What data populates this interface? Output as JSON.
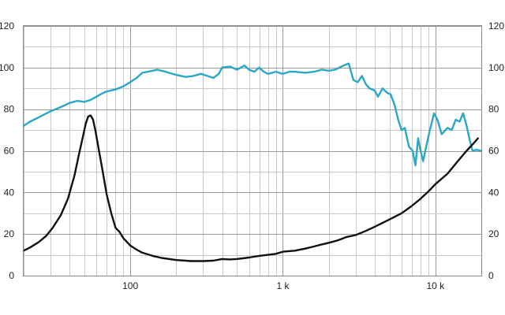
{
  "chart_data": {
    "type": "line",
    "title": "",
    "xlabel": "",
    "ylabel": "",
    "x_scale": "log",
    "xlim": [
      20,
      20000
    ],
    "ylim": [
      0,
      120
    ],
    "grid": true,
    "y_ticks": [
      "0",
      "20",
      "40",
      "60",
      "80",
      "100",
      "120"
    ],
    "x_tick_labels": [
      {
        "value": 100,
        "label": "100"
      },
      {
        "value": 1000,
        "label": "1 k"
      },
      {
        "value": 10000,
        "label": "10 k"
      }
    ],
    "series": [
      {
        "color": "#2aa6c6",
        "points": [
          [
            20,
            72
          ],
          [
            22,
            74
          ],
          [
            25,
            76
          ],
          [
            30,
            79
          ],
          [
            35,
            81
          ],
          [
            40,
            83
          ],
          [
            45,
            84
          ],
          [
            50,
            83.5
          ],
          [
            55,
            84.5
          ],
          [
            60,
            86
          ],
          [
            65,
            87.5
          ],
          [
            70,
            88.5
          ],
          [
            80,
            89.5
          ],
          [
            90,
            91
          ],
          [
            100,
            93
          ],
          [
            110,
            95
          ],
          [
            120,
            97.5
          ],
          [
            130,
            98
          ],
          [
            140,
            98.5
          ],
          [
            150,
            99
          ],
          [
            170,
            98
          ],
          [
            200,
            96.5
          ],
          [
            230,
            95.5
          ],
          [
            260,
            96
          ],
          [
            290,
            97
          ],
          [
            320,
            96
          ],
          [
            350,
            95
          ],
          [
            380,
            97
          ],
          [
            400,
            100
          ],
          [
            450,
            100.5
          ],
          [
            500,
            99
          ],
          [
            560,
            101
          ],
          [
            600,
            99
          ],
          [
            650,
            98
          ],
          [
            700,
            100
          ],
          [
            750,
            98
          ],
          [
            800,
            97
          ],
          [
            900,
            98
          ],
          [
            1000,
            97
          ],
          [
            1100,
            98
          ],
          [
            1200,
            98
          ],
          [
            1400,
            97.5
          ],
          [
            1600,
            98
          ],
          [
            1800,
            99
          ],
          [
            2000,
            98.5
          ],
          [
            2200,
            99
          ],
          [
            2500,
            101
          ],
          [
            2700,
            102
          ],
          [
            2900,
            94
          ],
          [
            3100,
            93
          ],
          [
            3300,
            96
          ],
          [
            3500,
            92
          ],
          [
            3700,
            90
          ],
          [
            4000,
            89
          ],
          [
            4200,
            86
          ],
          [
            4500,
            90
          ],
          [
            4800,
            88
          ],
          [
            5100,
            87
          ],
          [
            5400,
            82
          ],
          [
            5700,
            75
          ],
          [
            6000,
            70
          ],
          [
            6300,
            71
          ],
          [
            6700,
            62
          ],
          [
            7100,
            60
          ],
          [
            7400,
            53
          ],
          [
            7700,
            66
          ],
          [
            8000,
            60
          ],
          [
            8300,
            55
          ],
          [
            8700,
            62
          ],
          [
            9200,
            70
          ],
          [
            9800,
            78
          ],
          [
            10300,
            75
          ],
          [
            11000,
            68
          ],
          [
            12000,
            71
          ],
          [
            12800,
            70
          ],
          [
            13600,
            75
          ],
          [
            14400,
            74
          ],
          [
            15200,
            78
          ],
          [
            16000,
            72
          ],
          [
            16800,
            65
          ],
          [
            17500,
            60
          ],
          [
            18500,
            60.5
          ],
          [
            20000,
            60
          ]
        ]
      },
      {
        "color": "#111111",
        "points": [
          [
            20,
            12
          ],
          [
            22,
            13.5
          ],
          [
            25,
            16
          ],
          [
            28,
            19
          ],
          [
            31,
            23
          ],
          [
            35,
            29
          ],
          [
            39,
            37
          ],
          [
            43,
            48
          ],
          [
            46,
            58
          ],
          [
            49,
            67
          ],
          [
            51,
            73
          ],
          [
            53,
            76.5
          ],
          [
            55,
            77
          ],
          [
            57,
            75
          ],
          [
            59,
            70
          ],
          [
            62,
            61
          ],
          [
            66,
            50
          ],
          [
            70,
            39
          ],
          [
            75,
            30
          ],
          [
            80,
            23
          ],
          [
            85,
            21
          ],
          [
            90,
            18
          ],
          [
            100,
            14.5
          ],
          [
            110,
            12.5
          ],
          [
            120,
            11
          ],
          [
            140,
            9.5
          ],
          [
            160,
            8.5
          ],
          [
            200,
            7.5
          ],
          [
            250,
            7
          ],
          [
            300,
            7
          ],
          [
            350,
            7.2
          ],
          [
            400,
            8
          ],
          [
            450,
            7.8
          ],
          [
            500,
            8
          ],
          [
            600,
            8.7
          ],
          [
            700,
            9.5
          ],
          [
            800,
            10
          ],
          [
            900,
            10.5
          ],
          [
            1000,
            11.5
          ],
          [
            1200,
            12
          ],
          [
            1400,
            13
          ],
          [
            1600,
            14
          ],
          [
            1800,
            15
          ],
          [
            2000,
            15.8
          ],
          [
            2300,
            17
          ],
          [
            2600,
            18.5
          ],
          [
            3000,
            19.5
          ],
          [
            3500,
            21.5
          ],
          [
            4000,
            23.5
          ],
          [
            5000,
            27
          ],
          [
            6000,
            30
          ],
          [
            7000,
            33.5
          ],
          [
            8000,
            37
          ],
          [
            9000,
            40.5
          ],
          [
            10000,
            44
          ],
          [
            12000,
            49
          ],
          [
            14000,
            55
          ],
          [
            16000,
            60
          ],
          [
            18000,
            64
          ],
          [
            19000,
            66
          ]
        ]
      }
    ]
  }
}
